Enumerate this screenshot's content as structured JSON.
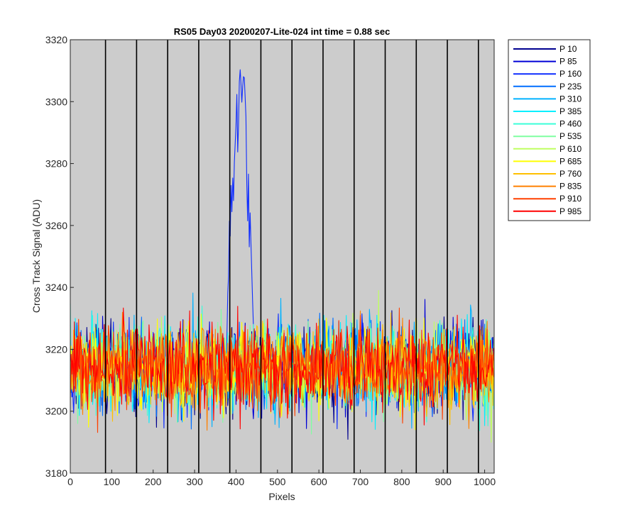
{
  "chart_data": {
    "type": "line",
    "title": "RS05 Day03 20200207-Lite-024 int time = 0.88 sec",
    "xlabel": "Pixels",
    "ylabel": "Cross Track Signal (ADU)",
    "xlim": [
      0,
      1023
    ],
    "ylim": [
      3180,
      3320
    ],
    "xticks": [
      0,
      100,
      200,
      300,
      400,
      500,
      600,
      700,
      800,
      900,
      1000
    ],
    "yticks": [
      3180,
      3200,
      3220,
      3240,
      3260,
      3280,
      3300,
      3320
    ],
    "plot_background": "#cccccc",
    "grid": false,
    "legend_position": "outside top-right",
    "vertical_dividers_x": [
      85,
      160,
      235,
      310,
      385,
      460,
      535,
      610,
      685,
      760,
      835,
      910,
      985
    ],
    "divider_color": "#000000",
    "baseline_mean": 3214,
    "noise_band": [
      3195,
      3235
    ],
    "peak": {
      "series": "P 160",
      "x_range": [
        375,
        445
      ],
      "max_value": 3311
    },
    "series": [
      {
        "name": "P 10",
        "color": "#00008f"
      },
      {
        "name": "P 85",
        "color": "#0000d6"
      },
      {
        "name": "P 160",
        "color": "#0f2dff"
      },
      {
        "name": "P 235",
        "color": "#006fff"
      },
      {
        "name": "P 310",
        "color": "#00b2ff"
      },
      {
        "name": "P 385",
        "color": "#00f0ff"
      },
      {
        "name": "P 460",
        "color": "#3bffd9"
      },
      {
        "name": "P 535",
        "color": "#7fffa1"
      },
      {
        "name": "P 610",
        "color": "#bfff60"
      },
      {
        "name": "P 685",
        "color": "#ffff00"
      },
      {
        "name": "P 760",
        "color": "#ffc000"
      },
      {
        "name": "P 835",
        "color": "#ff8000"
      },
      {
        "name": "P 910",
        "color": "#ff4000"
      },
      {
        "name": "P 985",
        "color": "#ff0000"
      }
    ]
  }
}
